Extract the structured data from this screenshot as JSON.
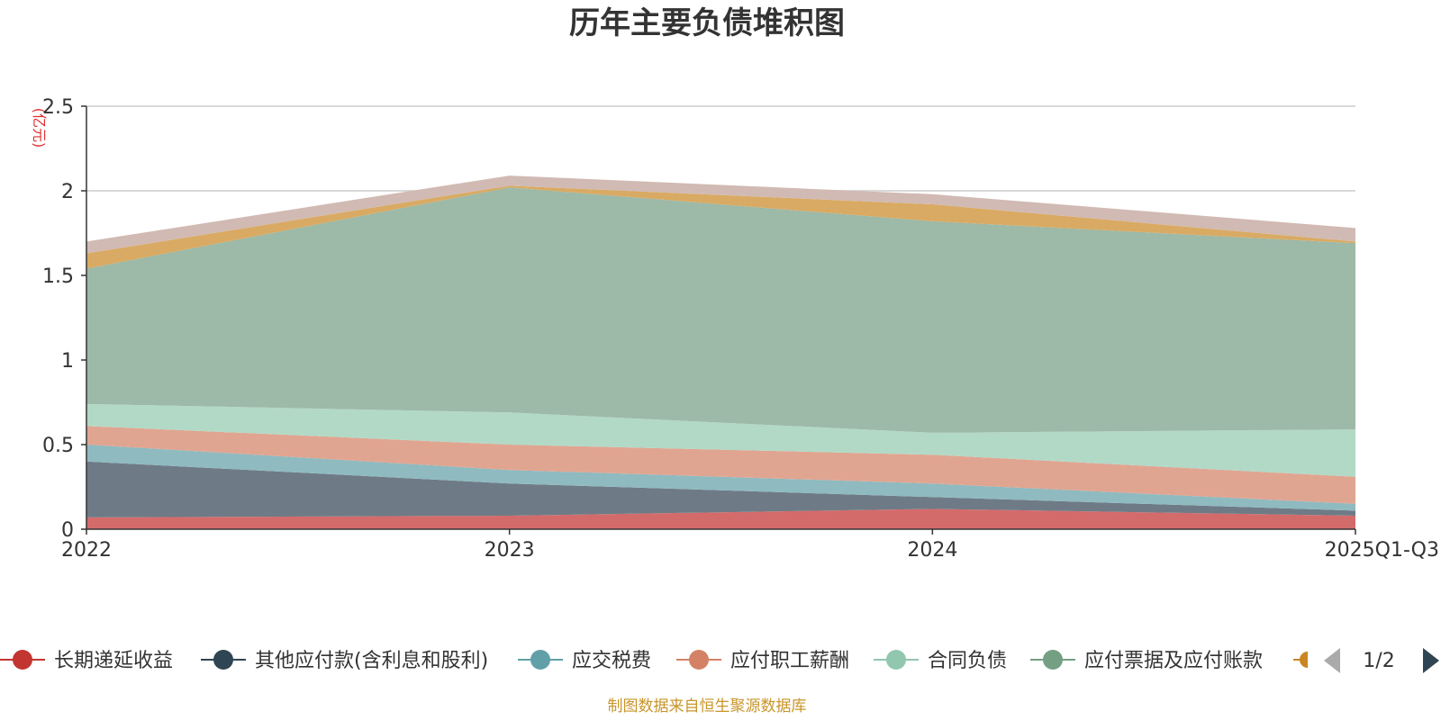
{
  "chart_data": {
    "type": "area",
    "stacked": true,
    "title": "历年主要负债堆积图",
    "unit_label": "(亿元)",
    "ylim": [
      0,
      2.5
    ],
    "yticks": [
      "0",
      "0.5",
      "1",
      "1.5",
      "2",
      "2.5"
    ],
    "ytick_values": [
      0,
      0.5,
      1,
      1.5,
      2,
      2.5
    ],
    "categories": [
      "2022",
      "2023",
      "2024",
      "2025Q1-Q3"
    ],
    "grid": true,
    "legend_position": "bottom",
    "series": [
      {
        "name": "长期递延收益",
        "color": "#c23531",
        "fill": "#d46b6b",
        "values": [
          0.07,
          0.08,
          0.12,
          0.08
        ]
      },
      {
        "name": "其他应付款(含利息和股利)",
        "color": "#2f4554",
        "fill": "#6e7b86",
        "values": [
          0.33,
          0.19,
          0.07,
          0.03
        ]
      },
      {
        "name": "应交税费",
        "color": "#61a0a8",
        "fill": "#8fbac0",
        "values": [
          0.1,
          0.08,
          0.08,
          0.04
        ]
      },
      {
        "name": "应付职工薪酬",
        "color": "#d48265",
        "fill": "#e0a591",
        "values": [
          0.11,
          0.15,
          0.17,
          0.16
        ]
      },
      {
        "name": "合同负债",
        "color": "#91c7ae",
        "fill": "#b2d9c6",
        "values": [
          0.13,
          0.19,
          0.13,
          0.28
        ]
      },
      {
        "name": "应付票据及应付账款",
        "color": "#749f83",
        "fill": "#9db9a7",
        "values": [
          0.8,
          1.33,
          1.25,
          1.1
        ]
      },
      {
        "name": "",
        "color": "#ca8622",
        "fill": "#d9aa63",
        "values": [
          0.09,
          0.01,
          0.1,
          0.01
        ]
      },
      {
        "name": "",
        "color": "#bda29a",
        "fill": "#d1bab3",
        "values": [
          0.07,
          0.06,
          0.06,
          0.08
        ]
      }
    ]
  },
  "legend": {
    "page": "1/2",
    "visible_series_count": 6
  },
  "source_text": "制图数据来自恒生聚源数据库"
}
